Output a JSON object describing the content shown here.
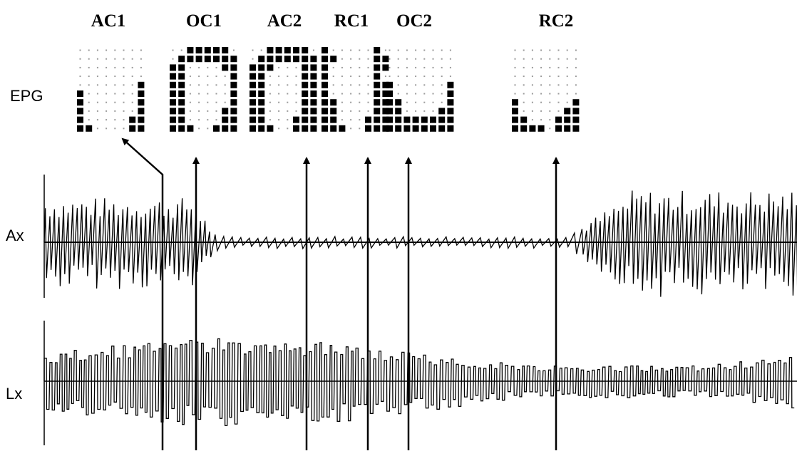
{
  "frame_labels": [
    "AC1",
    "OC1",
    "AC2",
    "RC1",
    "OC2",
    "RC2"
  ],
  "row_labels": {
    "epg": "EPG",
    "ax": "Ax",
    "lx": "Lx"
  },
  "palatograms": [
    {
      "label": "AC1",
      "rows": [
        "00000000",
        "00000000",
        "00000000",
        "00000000",
        "00000001",
        "10000001",
        "10000001",
        "10000001",
        "10000011",
        "11000011"
      ]
    },
    {
      "label": "OC1",
      "rows": [
        "00111110",
        "01111111",
        "11000011",
        "11000001",
        "11000001",
        "11000001",
        "11000001",
        "11000011",
        "11000011",
        "11100111"
      ]
    },
    {
      "label": "AC2",
      "rows": [
        "00111110",
        "01111111",
        "11100011",
        "11000011",
        "11000011",
        "11000011",
        "11000011",
        "11000011",
        "11000111",
        "11100111"
      ]
    },
    {
      "label": "RC1",
      "rows": [
        "10000010",
        "11000011",
        "10000011",
        "10000010",
        "10000011",
        "10000011",
        "11000011",
        "11000011",
        "11000111",
        "11100111"
      ]
    },
    {
      "label": "OC2",
      "rows": [
        "00000000",
        "00000000",
        "00000000",
        "00000000",
        "10000001",
        "10000001",
        "11000001",
        "11000011",
        "11111111",
        "11111111"
      ]
    },
    {
      "label": "RC2",
      "rows": [
        "00000000",
        "00000000",
        "00000000",
        "00000000",
        "00000000",
        "00000000",
        "10000001",
        "10000011",
        "11000111",
        "11110111"
      ]
    }
  ],
  "colors": {
    "ink": "#000000",
    "contact": "#000000",
    "no_contact": "#9a9a9a",
    "background": "#ffffff"
  }
}
